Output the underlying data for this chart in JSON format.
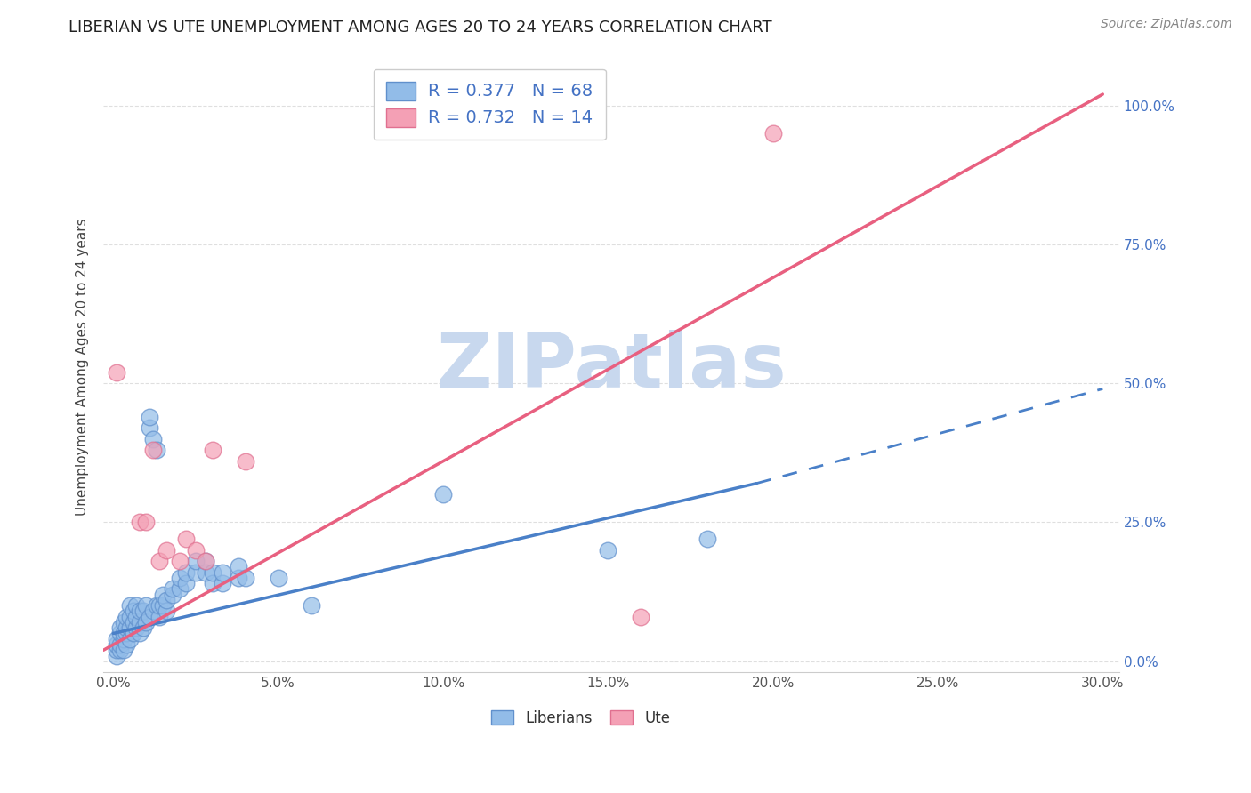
{
  "title": "LIBERIAN VS UTE UNEMPLOYMENT AMONG AGES 20 TO 24 YEARS CORRELATION CHART",
  "source": "Source: ZipAtlas.com",
  "ylabel": "Unemployment Among Ages 20 to 24 years",
  "xlabel_ticks": [
    "0.0%",
    "5.0%",
    "10.0%",
    "15.0%",
    "20.0%",
    "25.0%",
    "30.0%"
  ],
  "xlabel_vals": [
    0.0,
    0.05,
    0.1,
    0.15,
    0.2,
    0.25,
    0.3
  ],
  "ylabel_ticks": [
    "0.0%",
    "25.0%",
    "50.0%",
    "75.0%",
    "100.0%"
  ],
  "ylabel_vals": [
    0.0,
    0.25,
    0.5,
    0.75,
    1.0
  ],
  "xlim": [
    -0.003,
    0.305
  ],
  "ylim": [
    -0.02,
    1.08
  ],
  "liberians_R": 0.377,
  "liberians_N": 68,
  "ute_R": 0.732,
  "ute_N": 14,
  "liberians_color": "#92bce8",
  "ute_color": "#f4a0b5",
  "liberians_edge_color": "#6090cc",
  "ute_edge_color": "#e07090",
  "trendline_liberians_color": "#4a80c8",
  "trendline_ute_color": "#e86080",
  "legend_blue_color": "#4472c4",
  "legend_pink_color": "#e05070",
  "watermark_color": "#c8d8ee",
  "liberians_scatter": [
    [
      0.001,
      0.01
    ],
    [
      0.001,
      0.02
    ],
    [
      0.001,
      0.03
    ],
    [
      0.001,
      0.04
    ],
    [
      0.002,
      0.02
    ],
    [
      0.002,
      0.03
    ],
    [
      0.002,
      0.05
    ],
    [
      0.002,
      0.06
    ],
    [
      0.003,
      0.02
    ],
    [
      0.003,
      0.04
    ],
    [
      0.003,
      0.05
    ],
    [
      0.003,
      0.07
    ],
    [
      0.004,
      0.03
    ],
    [
      0.004,
      0.05
    ],
    [
      0.004,
      0.06
    ],
    [
      0.004,
      0.08
    ],
    [
      0.005,
      0.04
    ],
    [
      0.005,
      0.06
    ],
    [
      0.005,
      0.08
    ],
    [
      0.005,
      0.1
    ],
    [
      0.006,
      0.05
    ],
    [
      0.006,
      0.07
    ],
    [
      0.006,
      0.09
    ],
    [
      0.007,
      0.06
    ],
    [
      0.007,
      0.08
    ],
    [
      0.007,
      0.1
    ],
    [
      0.008,
      0.05
    ],
    [
      0.008,
      0.07
    ],
    [
      0.008,
      0.09
    ],
    [
      0.009,
      0.06
    ],
    [
      0.009,
      0.09
    ],
    [
      0.01,
      0.07
    ],
    [
      0.01,
      0.1
    ],
    [
      0.011,
      0.08
    ],
    [
      0.011,
      0.42
    ],
    [
      0.011,
      0.44
    ],
    [
      0.012,
      0.09
    ],
    [
      0.012,
      0.4
    ],
    [
      0.013,
      0.1
    ],
    [
      0.013,
      0.38
    ],
    [
      0.014,
      0.08
    ],
    [
      0.014,
      0.1
    ],
    [
      0.015,
      0.1
    ],
    [
      0.015,
      0.12
    ],
    [
      0.016,
      0.09
    ],
    [
      0.016,
      0.11
    ],
    [
      0.018,
      0.12
    ],
    [
      0.018,
      0.13
    ],
    [
      0.02,
      0.13
    ],
    [
      0.02,
      0.15
    ],
    [
      0.022,
      0.14
    ],
    [
      0.022,
      0.16
    ],
    [
      0.025,
      0.16
    ],
    [
      0.025,
      0.18
    ],
    [
      0.028,
      0.16
    ],
    [
      0.028,
      0.18
    ],
    [
      0.03,
      0.14
    ],
    [
      0.03,
      0.16
    ],
    [
      0.033,
      0.14
    ],
    [
      0.033,
      0.16
    ],
    [
      0.038,
      0.15
    ],
    [
      0.038,
      0.17
    ],
    [
      0.04,
      0.15
    ],
    [
      0.05,
      0.15
    ],
    [
      0.06,
      0.1
    ],
    [
      0.1,
      0.3
    ],
    [
      0.15,
      0.2
    ],
    [
      0.18,
      0.22
    ]
  ],
  "ute_scatter": [
    [
      0.001,
      0.52
    ],
    [
      0.008,
      0.25
    ],
    [
      0.01,
      0.25
    ],
    [
      0.012,
      0.38
    ],
    [
      0.014,
      0.18
    ],
    [
      0.016,
      0.2
    ],
    [
      0.02,
      0.18
    ],
    [
      0.022,
      0.22
    ],
    [
      0.025,
      0.2
    ],
    [
      0.028,
      0.18
    ],
    [
      0.03,
      0.38
    ],
    [
      0.04,
      0.36
    ],
    [
      0.16,
      0.08
    ],
    [
      0.2,
      0.95
    ]
  ],
  "liberians_trendline_solid": [
    [
      0.0,
      0.05
    ],
    [
      0.195,
      0.32
    ]
  ],
  "liberians_trendline_dashed": [
    [
      0.195,
      0.32
    ],
    [
      0.3,
      0.49
    ]
  ],
  "ute_trendline": [
    [
      -0.003,
      0.02
    ],
    [
      0.3,
      1.02
    ]
  ],
  "background_color": "#ffffff",
  "plot_bg_color": "#ffffff",
  "grid_color": "#d8d8d8"
}
